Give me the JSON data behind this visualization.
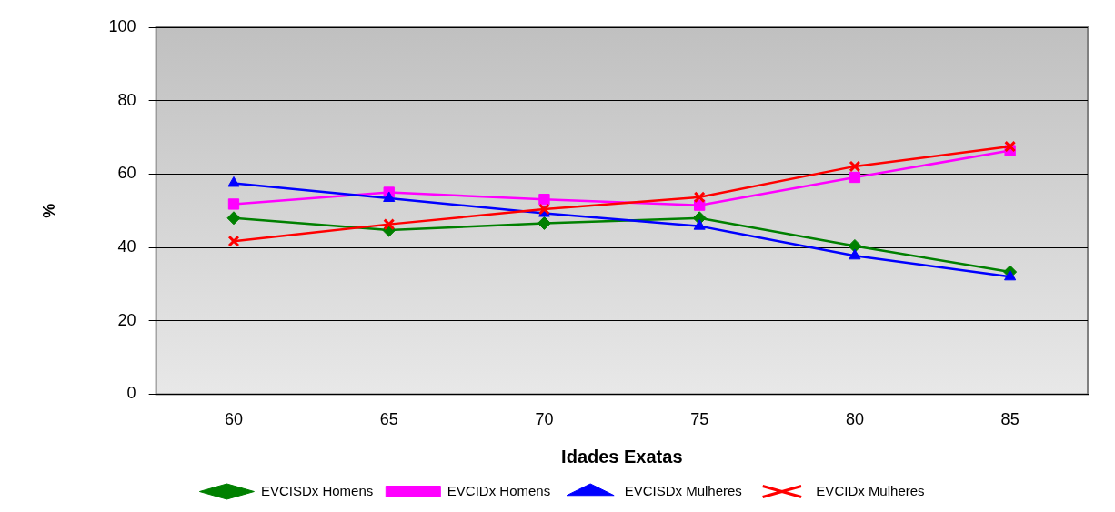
{
  "chart_data": {
    "type": "line",
    "xlabel": "Idades Exatas",
    "ylabel": "%",
    "categories": [
      "60",
      "65",
      "70",
      "75",
      "80",
      "85"
    ],
    "ylim": [
      0,
      100
    ],
    "yticks": [
      0,
      20,
      40,
      60,
      80,
      100
    ],
    "grid": "y",
    "legend": "bottom",
    "line_style": "solid",
    "series": [
      {
        "name": "EVCISDx Homens",
        "color": "#008000",
        "marker": "diamond",
        "values": [
          48.0,
          44.7,
          46.6,
          48.0,
          40.4,
          33.3
        ]
      },
      {
        "name": "EVCIDx Homens",
        "color": "#ff00ff",
        "marker": "square",
        "values": [
          51.8,
          55.0,
          53.1,
          51.5,
          59.1,
          66.4
        ]
      },
      {
        "name": "EVCISDx Mulheres",
        "color": "#0000ff",
        "marker": "triangle",
        "values": [
          57.5,
          53.4,
          49.3,
          45.8,
          37.7,
          32.0
        ]
      },
      {
        "name": "EVCIDx Mulheres",
        "color": "#ff0000",
        "marker": "cross",
        "values": [
          41.7,
          46.3,
          50.4,
          53.7,
          62.1,
          67.5
        ]
      }
    ]
  }
}
